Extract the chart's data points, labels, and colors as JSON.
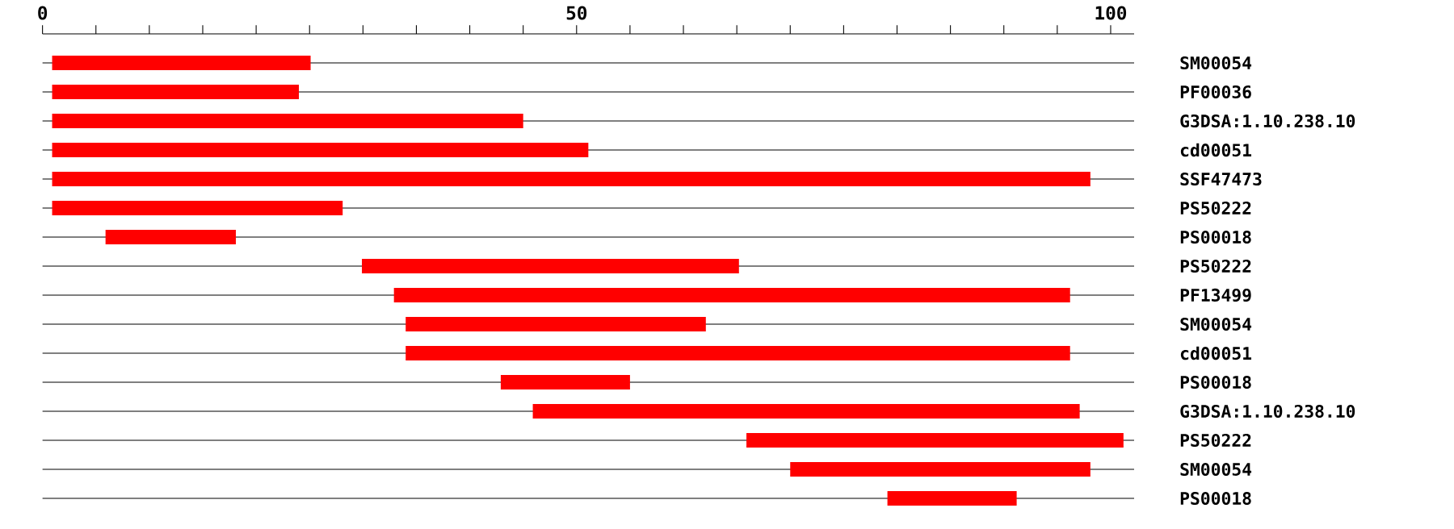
{
  "chart_data": {
    "type": "bar",
    "orientation": "horizontal",
    "grid": "y",
    "color": "#ff0000",
    "categories": [
      "SM00054",
      "PF00036",
      "G3DSA:1.10.238.10",
      "cd00051",
      "SSF47473",
      "PS50222",
      "PS00018",
      "PS50222",
      "PF13499",
      "SM00054",
      "cd00051",
      "PS00018",
      "G3DSA:1.10.238.10",
      "PS50222",
      "SM00054",
      "PS00018"
    ],
    "base": [
      0.9,
      0.9,
      0.9,
      0.9,
      0.9,
      0.9,
      5.9,
      29.9,
      32.9,
      34.0,
      34.0,
      42.9,
      45.9,
      65.9,
      70.0,
      79.1
    ],
    "values": [
      24.2,
      23.1,
      44.1,
      50.2,
      97.2,
      27.2,
      12.2,
      35.3,
      63.3,
      28.1,
      62.2,
      12.1,
      51.2,
      35.3,
      28.1,
      12.1
    ],
    "xlim": [
      0,
      102.2
    ],
    "xticks": [
      0,
      {
        "value": 5,
        "label": null
      },
      {
        "value": 10,
        "label": null
      },
      {
        "value": 15,
        "label": null
      },
      {
        "value": 20,
        "label": null
      },
      {
        "value": 25,
        "label": null
      },
      {
        "value": 30,
        "label": null
      },
      {
        "value": 35,
        "label": null
      },
      {
        "value": 40,
        "label": null
      },
      {
        "value": 45,
        "label": null
      },
      50,
      {
        "value": 55,
        "label": null
      },
      {
        "value": 60,
        "label": null
      },
      {
        "value": 65,
        "label": null
      },
      {
        "value": 70,
        "label": null
      },
      {
        "value": 75,
        "label": null
      },
      {
        "value": 80,
        "label": null
      },
      {
        "value": 85,
        "label": null
      },
      {
        "value": 90,
        "label": null
      },
      {
        "value": 95,
        "label": null
      },
      100
    ]
  }
}
